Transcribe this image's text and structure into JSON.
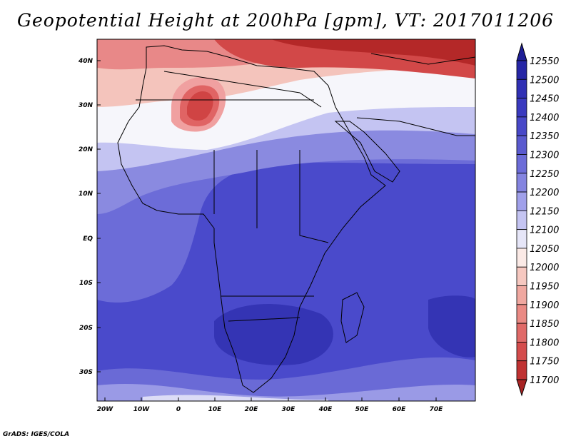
{
  "title": "Geopotential Height at 200hPa [gpm], VT: 2017011206",
  "credit": "GrADS: IGES/COLA",
  "lat_labels": [
    "40N",
    "30N",
    "20N",
    "10N",
    "EQ",
    "10S",
    "20S",
    "30S"
  ],
  "lon_labels": [
    "20W",
    "10W",
    "0",
    "10E",
    "20E",
    "30E",
    "40E",
    "50E",
    "60E",
    "70E"
  ],
  "colorbar": {
    "levels": [
      "12550",
      "12500",
      "12450",
      "12400",
      "12350",
      "12300",
      "12250",
      "12200",
      "12150",
      "12100",
      "12050",
      "12000",
      "11950",
      "11900",
      "11850",
      "11800",
      "11750",
      "11700"
    ],
    "colors": [
      "#1e1e96",
      "#2626a6",
      "#3030b4",
      "#3a3abf",
      "#4848c8",
      "#5a5acf",
      "#6c6cd8",
      "#8484e0",
      "#a0a0ea",
      "#c4c4f2",
      "#e6e6f8",
      "#fbeae6",
      "#f6c8c0",
      "#f0a8a0",
      "#ea8a84",
      "#e06a68",
      "#d44c4c",
      "#c03232",
      "#a82424"
    ]
  },
  "map_colors": {
    "ocean_blue": "#4a4acb",
    "deep_blue": "#3434b4",
    "light_blue": "#8a8ae0",
    "white": "#f6f6fb",
    "pink": "#f4c4bc",
    "red": "#e06464",
    "dark_red": "#b42828"
  }
}
